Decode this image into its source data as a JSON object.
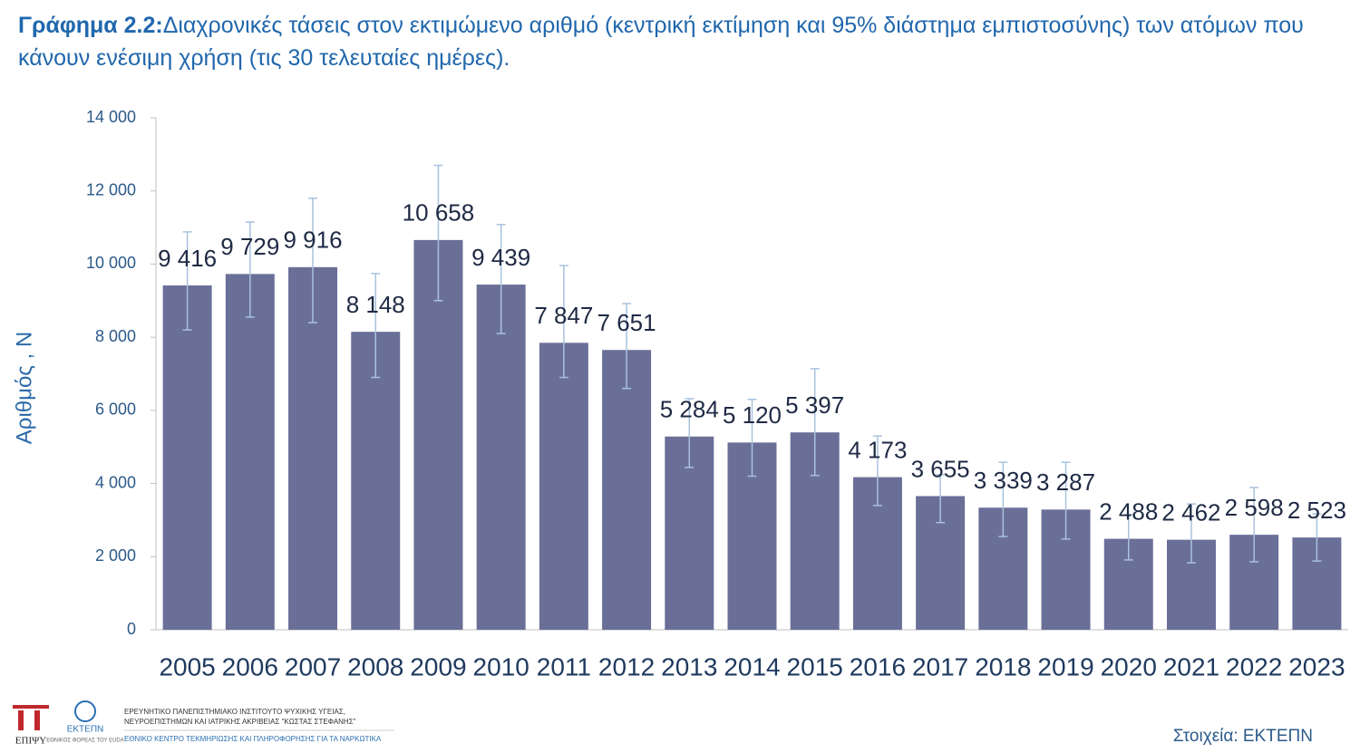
{
  "chart_data": {
    "type": "bar",
    "title_label": "Γράφημα 2.2:",
    "title": "Διαχρονικές τάσεις στον εκτιμώμενο αριθμό (κεντρική εκτίμηση και 95% διάστημα εμπιστοσύνης) των ατόμων που κάνουν ενέσιμη χρήση (τις 30 τελευταίες ημέρες).",
    "y_label": "Αριθμός , Ν",
    "categories": [
      "2005",
      "2006",
      "2007",
      "2008",
      "2009",
      "2010",
      "2011",
      "2012",
      "2013",
      "2014",
      "2015",
      "2016",
      "2017",
      "2018",
      "2019",
      "2020",
      "2021",
      "2022",
      "2023"
    ],
    "series": [
      {
        "color": "#6a6f98",
        "error_color": "#a9c2de",
        "values": [
          9416,
          9729,
          9916,
          8148,
          10658,
          9439,
          7847,
          7651,
          5284,
          5120,
          5397,
          4173,
          3655,
          3339,
          3287,
          2488,
          2462,
          2598,
          2523
        ],
        "value_labels": [
          "9 416",
          "9 729",
          "9 916",
          "8 148",
          "10 658",
          "9 439",
          "7 847",
          "7 651",
          "5 284",
          "5 120",
          "5 397",
          "4 173",
          "3 655",
          "3 339",
          "3 287",
          "2 488",
          "2 462",
          "2 598",
          "2 523"
        ],
        "ci_low": [
          8200,
          8550,
          8400,
          6900,
          9000,
          8100,
          6900,
          6600,
          4440,
          4200,
          4220,
          3400,
          2930,
          2550,
          2480,
          1910,
          1830,
          1860,
          1880
        ],
        "ci_high": [
          10880,
          11150,
          11800,
          9740,
          12700,
          11080,
          9960,
          8920,
          6320,
          6300,
          7140,
          5300,
          4240,
          4580,
          4580,
          3150,
          3440,
          3890,
          3170
        ]
      }
    ],
    "ylim": [
      0,
      14000
    ],
    "yticks": [
      0,
      {
        "value": 2000,
        "label": "2 000"
      },
      {
        "value": 4000,
        "label": "4 000"
      },
      {
        "value": 6000,
        "label": "6 000"
      },
      {
        "value": 8000,
        "label": "8 000"
      },
      {
        "value": 10000,
        "label": "10 000"
      },
      {
        "value": 12000,
        "label": "12 000"
      },
      {
        "value": 14000,
        "label": "14 000"
      }
    ],
    "grid": false
  },
  "footer": {
    "logo_left": "ΕΠΙΨΥ",
    "logo_right": "ΕΚΤΕΠΝ",
    "logo_right_sub": "ΕΘΝΙΚΟΣ ΦΟΡΕΑΣ ΤΟΥ EUDA",
    "institute_line1": "ΕΡΕΥΝΗΤΙΚΟ ΠΑΝΕΠΙΣΤΗΜΙΑΚΟ ΙΝΣΤΙΤΟΥΤΟ ΨΥΧΙΚΗΣ ΥΓΕΙΑΣ,",
    "institute_line2": "ΝΕΥΡΟΕΠΙΣΤΗΜΩΝ ΚΑΙ ΙΑΤΡΙΚΗΣ ΑΚΡΙΒΕΙΑΣ \"ΚΩΣΤΑΣ ΣΤΕΦΑΝΗΣ\"",
    "center_name": "ΕΘΝΙΚΟ ΚΕΝΤΡΟ ΤΕΚΜΗΡΙΩΣΗΣ ΚΑΙ ΠΛΗΡΟΦΟΡΗΣΗΣ ΓΙΑ ΤΑ ΝΑΡΚΩΤΙΚΑ",
    "source": "Στοιχεία: ΕΚΤΕΠΝ"
  }
}
